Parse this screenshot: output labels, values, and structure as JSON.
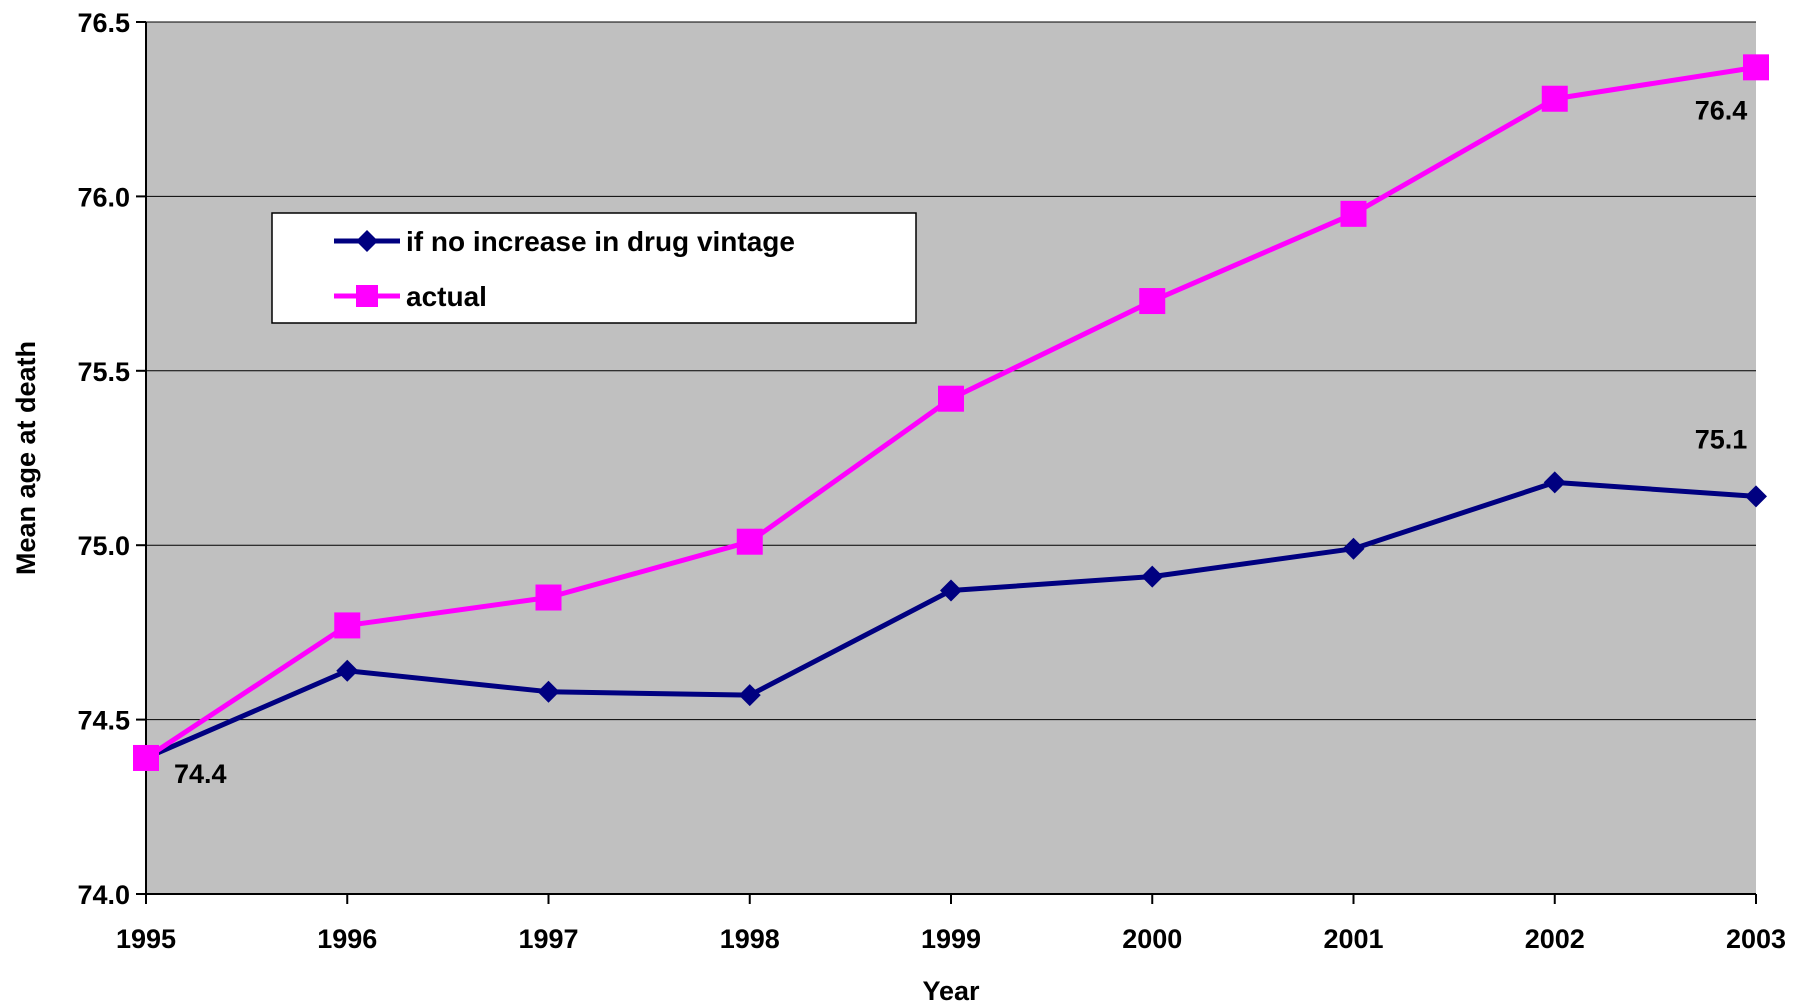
{
  "colors": {
    "plot_background": "#C0C0C0",
    "gridline": "#000000",
    "series_no_increase": "#000080",
    "series_actual": "#FF00FF"
  },
  "chart_data": {
    "type": "line",
    "title": "",
    "xlabel": "Year",
    "ylabel": "Mean age at death",
    "categories": [
      "1995",
      "1996",
      "1997",
      "1998",
      "1999",
      "2000",
      "2001",
      "2002",
      "2003"
    ],
    "ylim": [
      74.0,
      76.5
    ],
    "y_ticks": [
      "74.0",
      "74.5",
      "75.0",
      "75.5",
      "76.0",
      "76.5"
    ],
    "grid": true,
    "legend_position": "top-left",
    "series": [
      {
        "name": "if no increase in drug vintage",
        "marker": "diamond",
        "values": [
          74.39,
          74.64,
          74.58,
          74.57,
          74.87,
          74.91,
          74.99,
          75.18,
          75.14
        ]
      },
      {
        "name": "actual",
        "marker": "square",
        "values": [
          74.39,
          74.77,
          74.85,
          75.01,
          75.42,
          75.7,
          75.95,
          76.28,
          76.37
        ]
      }
    ],
    "annotations": [
      {
        "text": "74.4",
        "series": 1,
        "index": 0
      },
      {
        "text": "75.1",
        "series": 0,
        "index": 8
      },
      {
        "text": "76.4",
        "series": 1,
        "index": 8
      }
    ]
  }
}
